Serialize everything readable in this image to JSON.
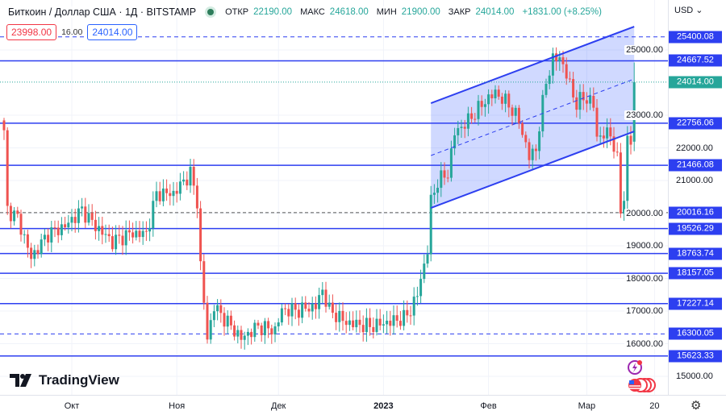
{
  "header": {
    "symbol": "Биткоин / Доллар США · 1Д · BITSTAMP",
    "open_label": "ОТКР",
    "open": "22190.00",
    "high_label": "МАКС",
    "high": "24618.00",
    "low_label": "МИН",
    "low": "21900.00",
    "close_label": "ЗАКР",
    "close": "24014.00",
    "change": "+1831.00 (+8.25%)"
  },
  "badges": {
    "sell": "23998.00",
    "spread": "16.00",
    "buy": "24014.00"
  },
  "axis": {
    "currency": "USD"
  },
  "logo": "TradingView",
  "colors": {
    "up": "#26a69a",
    "down": "#ef5350",
    "level": "#2d3ff0",
    "channel_fill": "rgba(41,82,255,0.22)"
  },
  "chart_data": {
    "type": "candlestick",
    "price_range": [
      14500,
      25700
    ],
    "y_ticks": [
      "25000.00",
      "23000.00",
      "22000.00",
      "21000.00",
      "20000.00",
      "19000.00",
      "18000.00",
      "17000.00",
      "16000.00",
      "15000.00"
    ],
    "x_labels": [
      {
        "label": "Окт",
        "day": 20,
        "bold": false
      },
      {
        "label": "Ноя",
        "day": 51,
        "bold": false
      },
      {
        "label": "Дек",
        "day": 81,
        "bold": false
      },
      {
        "label": "2023",
        "day": 112,
        "bold": true
      },
      {
        "label": "Фев",
        "day": 143,
        "bold": false
      },
      {
        "label": "Мар",
        "day": 172,
        "bold": false
      },
      {
        "label": "20",
        "day": 192,
        "bold": false
      }
    ],
    "close_keypoints": [
      [
        0,
        22450
      ],
      [
        1,
        20100
      ],
      [
        4,
        19860
      ],
      [
        8,
        18630
      ],
      [
        13,
        19370
      ],
      [
        18,
        19600
      ],
      [
        23,
        20100
      ],
      [
        27,
        19600
      ],
      [
        32,
        19120
      ],
      [
        37,
        19370
      ],
      [
        42,
        19370
      ],
      [
        45,
        20600
      ],
      [
        50,
        20600
      ],
      [
        55,
        21220
      ],
      [
        57,
        20360
      ],
      [
        58,
        18380
      ],
      [
        60,
        16160
      ],
      [
        62,
        17150
      ],
      [
        66,
        16650
      ],
      [
        70,
        16160
      ],
      [
        75,
        16530
      ],
      [
        80,
        16410
      ],
      [
        82,
        17030
      ],
      [
        87,
        17030
      ],
      [
        92,
        17150
      ],
      [
        94,
        17640
      ],
      [
        96,
        17030
      ],
      [
        101,
        16650
      ],
      [
        108,
        16530
      ],
      [
        113,
        16650
      ],
      [
        118,
        16780
      ],
      [
        120,
        17030
      ],
      [
        122,
        17520
      ],
      [
        125,
        18880
      ],
      [
        126,
        20360
      ],
      [
        128,
        20980
      ],
      [
        131,
        21220
      ],
      [
        133,
        22460
      ],
      [
        137,
        22830
      ],
      [
        142,
        23440
      ],
      [
        145,
        23690
      ],
      [
        149,
        23320
      ],
      [
        152,
        22830
      ],
      [
        155,
        21720
      ],
      [
        157,
        21960
      ],
      [
        160,
        24060
      ],
      [
        162,
        24680
      ],
      [
        164,
        24800
      ],
      [
        167,
        23940
      ],
      [
        169,
        23320
      ],
      [
        171,
        23570
      ],
      [
        174,
        23320
      ],
      [
        175,
        22330
      ],
      [
        179,
        22460
      ],
      [
        181,
        21590
      ],
      [
        182,
        20110
      ],
      [
        183,
        20480
      ],
      [
        184,
        22210
      ],
      [
        185,
        22190
      ]
    ],
    "last_candle": {
      "open": 22190,
      "high": 24618,
      "low": 21900,
      "close": 24014
    },
    "levels": [
      {
        "price": 25400.08,
        "label": "25400.08",
        "style": "dashed"
      },
      {
        "price": 24667.52,
        "label": "24667.52",
        "style": "solid"
      },
      {
        "price": 22756.06,
        "label": "22756.06",
        "style": "solid"
      },
      {
        "price": 21466.08,
        "label": "21466.08",
        "style": "solid"
      },
      {
        "price": 20016.16,
        "label": "20016.16",
        "style": "dashed-dark"
      },
      {
        "price": 19526.29,
        "label": "19526.29",
        "style": "solid"
      },
      {
        "price": 18763.74,
        "label": "18763.74",
        "style": "solid"
      },
      {
        "price": 18157.05,
        "label": "18157.05",
        "style": "solid"
      },
      {
        "price": 17227.14,
        "label": "17227.14",
        "style": "solid"
      },
      {
        "price": 16300.05,
        "label": "16300.05",
        "style": "dashed"
      },
      {
        "price": 15623.33,
        "label": "15623.33",
        "style": "solid"
      }
    ],
    "current_price": {
      "price": 24014,
      "label": "24014.00"
    },
    "channel": {
      "start_day": 126,
      "end_day": 186,
      "upper": [
        23370,
        25716
      ],
      "lower": [
        20160,
        22506
      ]
    }
  }
}
